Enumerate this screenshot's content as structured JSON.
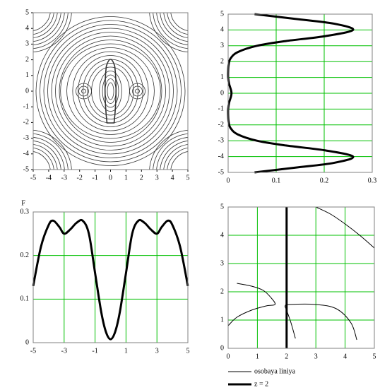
{
  "chart_data": [
    {
      "type": "contour",
      "xlim": [
        -5,
        5
      ],
      "ylim": [
        -5,
        5
      ],
      "xticks": [
        -5,
        -4,
        -3,
        -2,
        -1,
        0,
        1,
        2,
        3,
        4,
        5
      ],
      "yticks": [
        -5,
        -4,
        -3,
        -2,
        -1,
        0,
        1,
        2,
        3,
        4,
        5
      ],
      "grid": false
    },
    {
      "type": "line",
      "xlim": [
        0,
        0.3
      ],
      "ylim": [
        -5,
        5
      ],
      "xticks": [
        0,
        0.1,
        0.2,
        0.3
      ],
      "yticks": [
        -5,
        -4,
        -3,
        -2,
        -1,
        0,
        1,
        2,
        3,
        4,
        5
      ],
      "grid": true,
      "grid_color": "#00c000",
      "series": [
        {
          "color": "#000000",
          "width": 3,
          "y": [
            -5,
            -4.7,
            -4.4,
            -4,
            -3.6,
            -3.3,
            -3,
            -2.6,
            -2.2,
            -1.8,
            -1.4,
            -1,
            -0.6,
            -0.2,
            0,
            0.2,
            0.6,
            1,
            1.4,
            1.8,
            2.2,
            2.6,
            3,
            3.3,
            3.6,
            4,
            4.4,
            4.7,
            5
          ],
          "values": [
            0.055,
            0.14,
            0.22,
            0.26,
            0.2,
            0.12,
            0.06,
            0.02,
            0.005,
            0.001,
            0,
            0,
            0.002,
            0.006,
            0.007,
            0.006,
            0.002,
            0,
            0,
            0.001,
            0.005,
            0.02,
            0.06,
            0.12,
            0.2,
            0.26,
            0.22,
            0.14,
            0.055
          ]
        }
      ]
    },
    {
      "type": "line",
      "ylabel": "F",
      "xlim": [
        -5,
        5
      ],
      "ylim": [
        0,
        0.3
      ],
      "xticks": [
        -5,
        -3,
        -1,
        1,
        3,
        5
      ],
      "yticks": [
        0,
        0.1,
        0.2,
        0.3
      ],
      "grid": true,
      "grid_color": "#00c000",
      "series": [
        {
          "color": "#000000",
          "width": 3,
          "x": [
            -5,
            -4.5,
            -4,
            -3.7,
            -3.3,
            -3,
            -2.6,
            -2.2,
            -1.8,
            -1.4,
            -1,
            -0.6,
            -0.3,
            0,
            0.3,
            0.6,
            1,
            1.4,
            1.8,
            2.2,
            2.6,
            3,
            3.3,
            3.7,
            4,
            4.5,
            5
          ],
          "values": [
            0.13,
            0.22,
            0.27,
            0.28,
            0.265,
            0.25,
            0.26,
            0.275,
            0.28,
            0.25,
            0.16,
            0.07,
            0.025,
            0.008,
            0.025,
            0.07,
            0.16,
            0.25,
            0.28,
            0.275,
            0.26,
            0.25,
            0.265,
            0.28,
            0.27,
            0.22,
            0.13
          ]
        }
      ]
    },
    {
      "type": "line",
      "xlim": [
        0,
        5
      ],
      "ylim": [
        0,
        5
      ],
      "xticks": [
        0,
        1,
        2,
        3,
        4,
        5
      ],
      "yticks": [
        0,
        1,
        2,
        3,
        4,
        5
      ],
      "grid": true,
      "grid_color": "#00c000",
      "legend": "bottom",
      "series": [
        {
          "name": "osobaya liniya",
          "color": "#000000",
          "width": 1,
          "x": [
            3,
            3.5,
            4,
            4.5,
            5,
            null,
            0,
            0.3,
            0.8,
            1.3,
            1.6,
            1.5,
            1.2,
            0.8,
            0.3,
            null,
            2.3,
            2.15,
            2,
            1.95,
            2.1,
            3,
            3.7,
            4.2,
            4.4
          ],
          "values": [
            5,
            4.75,
            4.4,
            4,
            3.55,
            null,
            0.8,
            1.1,
            1.35,
            1.5,
            1.55,
            1.75,
            2.05,
            2.2,
            2.3,
            null,
            0.35,
            0.9,
            1.35,
            1.5,
            1.55,
            1.55,
            1.4,
            0.9,
            0.3
          ]
        },
        {
          "name": "z = 2",
          "color": "#000000",
          "width": 3,
          "x": [
            2,
            2
          ],
          "values": [
            0,
            5
          ]
        }
      ]
    }
  ]
}
